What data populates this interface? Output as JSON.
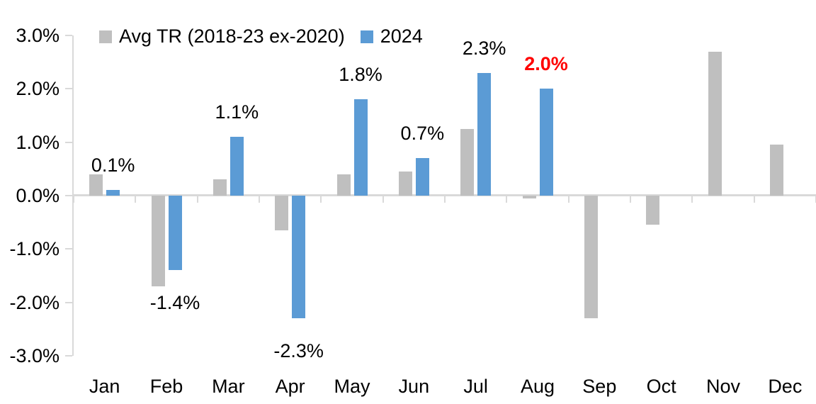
{
  "chart_data": {
    "type": "bar",
    "title": "",
    "categories": [
      "Jan",
      "Feb",
      "Mar",
      "Apr",
      "May",
      "Jun",
      "Jul",
      "Aug",
      "Sep",
      "Oct",
      "Nov",
      "Dec"
    ],
    "series": [
      {
        "name": "Avg TR (2018-23 ex-2020)",
        "color": "#BFBFBF",
        "values": [
          0.4,
          -1.7,
          0.3,
          -0.65,
          0.4,
          0.45,
          1.25,
          -0.05,
          -2.3,
          -0.55,
          2.7,
          0.95
        ]
      },
      {
        "name": "2024",
        "color": "#5B9BD5",
        "values": [
          0.1,
          -1.4,
          1.1,
          -2.3,
          1.8,
          0.7,
          2.3,
          2.0,
          null,
          null,
          null,
          null
        ],
        "data_labels": [
          "0.1%",
          "-1.4%",
          "1.1%",
          "-2.3%",
          "1.8%",
          "0.7%",
          "2.3%",
          "2.0%",
          null,
          null,
          null,
          null
        ],
        "label_highlight": {
          "index": 7,
          "color": "#FF0000",
          "bold": true
        }
      }
    ],
    "y_axis": {
      "min": -3,
      "max": 3,
      "unit": "%",
      "ticks": [
        {
          "value": 3,
          "label": "3.0%"
        },
        {
          "value": 2,
          "label": "2.0%"
        },
        {
          "value": 1,
          "label": "1.0%"
        },
        {
          "value": 0,
          "label": "0.0%"
        },
        {
          "value": -1,
          "label": "-1.0%"
        },
        {
          "value": -2,
          "label": "-2.0%"
        },
        {
          "value": -3,
          "label": "-3.0%"
        }
      ]
    },
    "legend_position": "top",
    "grid": false,
    "axis_color": "#D9D9D9",
    "text_color": "#000000"
  }
}
